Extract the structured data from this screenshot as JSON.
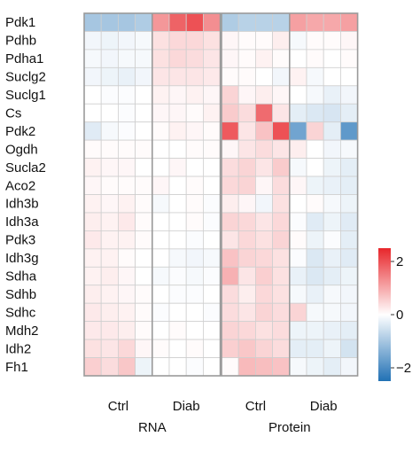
{
  "chart_data": {
    "type": "heatmap",
    "genes": [
      "Pdk1",
      "Pdhb",
      "Pdha1",
      "Suclg2",
      "Suclg1",
      "Cs",
      "Pdk2",
      "Ogdh",
      "Sucla2",
      "Aco2",
      "Idh3b",
      "Idh3a",
      "Pdk3",
      "Idh3g",
      "Sdha",
      "Sdhb",
      "Sdhc",
      "Mdh2",
      "Idh2",
      "Fh1"
    ],
    "panels": [
      {
        "name": "RNA",
        "groups": [
          {
            "label": "Ctrl",
            "n": 4
          },
          {
            "label": "Diab",
            "n": 4
          }
        ],
        "values": [
          [
            -1.0,
            -1.0,
            -1.0,
            -0.9,
            1.2,
            1.8,
            2.0,
            1.3
          ],
          [
            -0.15,
            -0.2,
            -0.15,
            -0.1,
            0.35,
            0.45,
            0.45,
            0.35
          ],
          [
            -0.1,
            -0.15,
            -0.1,
            -0.1,
            0.35,
            0.45,
            0.4,
            0.3
          ],
          [
            -0.15,
            -0.2,
            -0.25,
            -0.15,
            0.3,
            0.3,
            0.3,
            0.25
          ],
          [
            0.0,
            -0.05,
            -0.05,
            0.0,
            0.15,
            0.1,
            0.15,
            0.1
          ],
          [
            0.0,
            0.0,
            -0.05,
            0.0,
            0.1,
            0.1,
            0.05,
            0.15
          ],
          [
            -0.35,
            -0.1,
            -0.05,
            0.0,
            0.05,
            0.15,
            0.1,
            0.05
          ],
          [
            0.05,
            0.05,
            0.05,
            0.05,
            0.0,
            0.0,
            0.05,
            0.05
          ],
          [
            0.15,
            0.1,
            0.1,
            0.0,
            0.0,
            0.1,
            0.0,
            0.0
          ],
          [
            0.1,
            0.05,
            0.05,
            0.05,
            0.1,
            0.0,
            0.05,
            0.0
          ],
          [
            0.15,
            0.1,
            0.15,
            0.05,
            -0.1,
            0.0,
            0.05,
            -0.05
          ],
          [
            0.2,
            0.15,
            0.25,
            0.05,
            0.0,
            0.0,
            0.05,
            -0.05
          ],
          [
            0.25,
            0.15,
            0.15,
            0.05,
            0.0,
            0.0,
            -0.05,
            0.0
          ],
          [
            0.15,
            0.15,
            0.05,
            0.0,
            0.0,
            -0.1,
            -0.15,
            -0.1
          ],
          [
            0.15,
            0.2,
            0.1,
            0.0,
            -0.1,
            -0.05,
            -0.1,
            -0.05
          ],
          [
            0.2,
            0.15,
            0.1,
            0.05,
            0.0,
            -0.05,
            -0.05,
            0.0
          ],
          [
            0.25,
            0.2,
            0.15,
            0.05,
            -0.05,
            0.0,
            0.0,
            -0.05
          ],
          [
            0.25,
            0.25,
            0.2,
            0.05,
            0.0,
            0.05,
            0.0,
            0.0
          ],
          [
            0.35,
            0.3,
            0.45,
            0.1,
            0.05,
            0.0,
            0.05,
            0.0
          ],
          [
            0.55,
            0.4,
            0.65,
            -0.2,
            0.0,
            0.0,
            -0.05,
            0.0
          ]
        ]
      },
      {
        "name": "Protein",
        "groups": [
          {
            "label": "Ctrl",
            "n": 4
          },
          {
            "label": "Diab",
            "n": 4
          }
        ],
        "values": [
          [
            -0.9,
            -0.8,
            -0.8,
            -0.8,
            1.1,
            1.0,
            1.0,
            1.1
          ],
          [
            0.1,
            0.05,
            0.05,
            0.2,
            -0.1,
            0.05,
            0.05,
            0.1
          ],
          [
            0.1,
            0.05,
            0.15,
            0.05,
            0.0,
            0.05,
            0.0,
            0.05
          ],
          [
            0.05,
            0.05,
            0.0,
            -0.15,
            0.15,
            -0.1,
            0.0,
            0.0
          ],
          [
            0.5,
            0.1,
            0.2,
            0.1,
            0.0,
            -0.1,
            -0.25,
            -0.15
          ],
          [
            0.6,
            0.4,
            1.7,
            0.3,
            -0.3,
            -0.4,
            -0.45,
            -0.3
          ],
          [
            1.9,
            0.3,
            0.7,
            2.0,
            -1.6,
            0.5,
            -0.3,
            -1.8
          ],
          [
            0.1,
            0.3,
            0.4,
            0.3,
            0.2,
            0.0,
            -0.15,
            -0.1
          ],
          [
            0.4,
            0.5,
            0.3,
            0.6,
            -0.1,
            0.0,
            -0.2,
            -0.3
          ],
          [
            0.45,
            0.5,
            0.1,
            0.4,
            0.1,
            -0.2,
            -0.25,
            -0.3
          ],
          [
            0.2,
            0.1,
            -0.15,
            0.35,
            0.0,
            0.05,
            -0.1,
            -0.2
          ],
          [
            0.5,
            0.45,
            0.3,
            0.45,
            -0.05,
            -0.35,
            -0.2,
            -0.35
          ],
          [
            0.3,
            0.45,
            0.35,
            0.5,
            0.05,
            -0.2,
            -0.05,
            -0.3
          ],
          [
            0.7,
            0.5,
            0.45,
            0.35,
            -0.05,
            -0.4,
            -0.25,
            -0.35
          ],
          [
            0.9,
            0.3,
            0.55,
            0.35,
            -0.25,
            -0.4,
            -0.3,
            -0.2
          ],
          [
            0.4,
            0.2,
            0.45,
            0.35,
            -0.1,
            -0.25,
            -0.1,
            -0.15
          ],
          [
            0.4,
            0.3,
            0.5,
            0.4,
            0.5,
            -0.1,
            -0.1,
            -0.15
          ],
          [
            0.5,
            0.45,
            0.35,
            0.4,
            -0.2,
            -0.2,
            -0.25,
            -0.3
          ],
          [
            0.55,
            0.65,
            0.5,
            0.4,
            -0.3,
            -0.3,
            -0.2,
            -0.5
          ],
          [
            0.05,
            0.8,
            0.75,
            0.7,
            -0.1,
            -0.2,
            -0.3,
            -0.15
          ]
        ]
      }
    ],
    "colorbar": {
      "min": -2.5,
      "max": 2.5,
      "ticks": [
        2,
        0,
        -2
      ],
      "colors": {
        "low": "#2171b5",
        "mid": "#ffffff",
        "high": "#e8262b"
      }
    },
    "grid": true,
    "legend": "right"
  }
}
